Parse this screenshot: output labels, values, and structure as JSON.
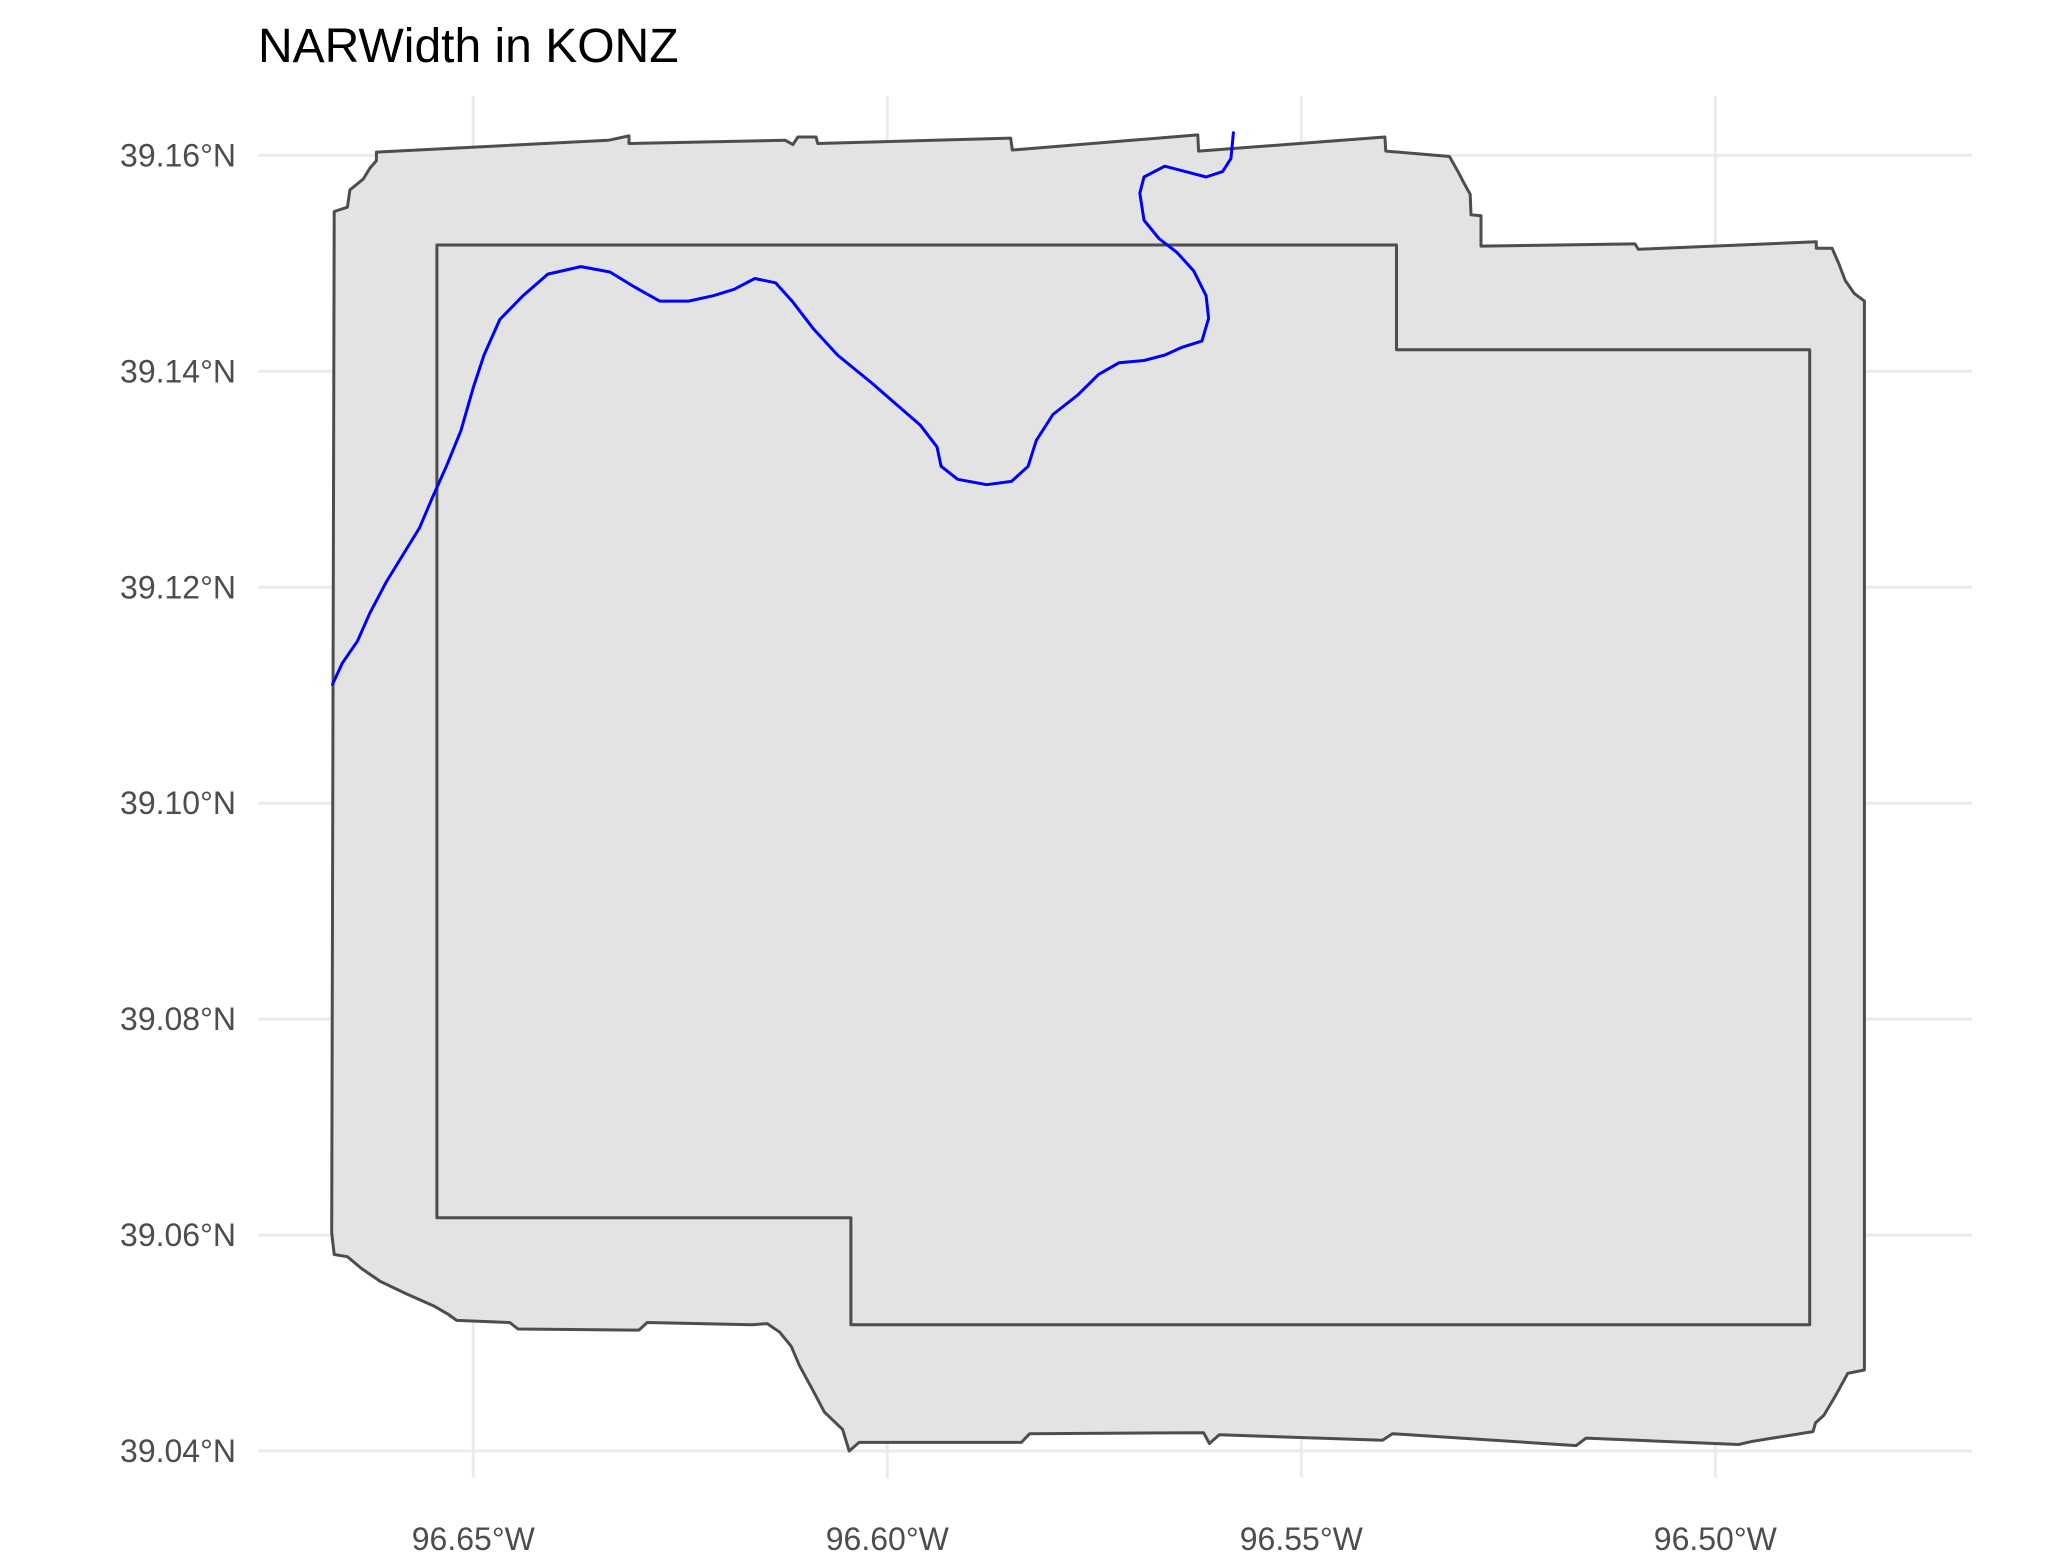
{
  "title": "NARWidth in KONZ",
  "colors": {
    "background": "#ffffff",
    "grid": "#ebebeb",
    "buffer_fill": "#e3e3e3",
    "outline": "#4d4d4d",
    "river": "#0000ff",
    "title": "#000000",
    "tick_label": "#4d4d4d"
  },
  "chart_data": {
    "type": "map",
    "xlim": [
      -96.676,
      -96.469
    ],
    "ylim": [
      39.0375,
      39.1655
    ],
    "x_ticks": [
      {
        "value": -96.65,
        "label": "96.65°W"
      },
      {
        "value": -96.6,
        "label": "96.60°W"
      },
      {
        "value": -96.55,
        "label": "96.55°W"
      },
      {
        "value": -96.5,
        "label": "96.50°W"
      }
    ],
    "y_ticks": [
      {
        "value": 39.16,
        "label": "39.16°N"
      },
      {
        "value": 39.14,
        "label": "39.14°N"
      },
      {
        "value": 39.12,
        "label": "39.12°N"
      },
      {
        "value": 39.1,
        "label": "39.10°N"
      },
      {
        "value": 39.08,
        "label": "39.08°N"
      },
      {
        "value": 39.06,
        "label": "39.06°N"
      },
      {
        "value": 39.04,
        "label": "39.04°N"
      }
    ],
    "grid": true,
    "layers": [
      {
        "name": "buffer",
        "kind": "polygon",
        "fill": "#e3e3e3",
        "stroke": "#4d4d4d",
        "coords": [
          [
            -96.6668,
            39.1548
          ],
          [
            -96.6652,
            39.1552
          ],
          [
            -96.6649,
            39.1568
          ],
          [
            -96.6633,
            39.1578
          ],
          [
            -96.6625,
            39.1588
          ],
          [
            -96.6617,
            39.1595
          ],
          [
            -96.6617,
            39.1603
          ],
          [
            -96.6337,
            39.1614
          ],
          [
            -96.6312,
            39.1618
          ],
          [
            -96.6312,
            39.1611
          ],
          [
            -96.6123,
            39.1614
          ],
          [
            -96.6114,
            39.161
          ],
          [
            -96.6108,
            39.1617
          ],
          [
            -96.6086,
            39.1617
          ],
          [
            -96.6084,
            39.1611
          ],
          [
            -96.5851,
            39.1616
          ],
          [
            -96.5849,
            39.1605
          ],
          [
            -96.5625,
            39.1619
          ],
          [
            -96.5624,
            39.1604
          ],
          [
            -96.5399,
            39.1617
          ],
          [
            -96.5398,
            39.1604
          ],
          [
            -96.5321,
            39.1599
          ],
          [
            -96.531,
            39.1584
          ],
          [
            -96.5304,
            39.1575
          ],
          [
            -96.5296,
            39.1564
          ],
          [
            -96.5295,
            39.1545
          ],
          [
            -96.5283,
            39.1544
          ],
          [
            -96.5283,
            39.1516
          ],
          [
            -96.5097,
            39.1518
          ],
          [
            -96.5093,
            39.1513
          ],
          [
            -96.4878,
            39.152
          ],
          [
            -96.4878,
            39.1514
          ],
          [
            -96.4859,
            39.1514
          ],
          [
            -96.4851,
            39.15
          ],
          [
            -96.4843,
            39.1484
          ],
          [
            -96.4832,
            39.1472
          ],
          [
            -96.482,
            39.1465
          ],
          [
            -96.482,
            39.0475
          ],
          [
            -96.484,
            39.0472
          ],
          [
            -96.4855,
            39.0451
          ],
          [
            -96.4869,
            39.0433
          ],
          [
            -96.4879,
            39.0426
          ],
          [
            -96.4882,
            39.0418
          ],
          [
            -96.4955,
            39.0409
          ],
          [
            -96.4972,
            39.0406
          ],
          [
            -96.5156,
            39.0412
          ],
          [
            -96.5168,
            39.0405
          ],
          [
            -96.539,
            39.0416
          ],
          [
            -96.5402,
            39.041
          ],
          [
            -96.5599,
            39.0415
          ],
          [
            -96.5611,
            39.0407
          ],
          [
            -96.5618,
            39.0417
          ],
          [
            -96.5828,
            39.0416
          ],
          [
            -96.5838,
            39.0408
          ],
          [
            -96.6034,
            39.0408
          ],
          [
            -96.6046,
            39.04
          ],
          [
            -96.6054,
            39.042
          ],
          [
            -96.6076,
            39.0436
          ],
          [
            -96.6091,
            39.0458
          ],
          [
            -96.6106,
            39.0479
          ],
          [
            -96.6116,
            39.0497
          ],
          [
            -96.613,
            39.051
          ],
          [
            -96.6145,
            39.0518
          ],
          [
            -96.6163,
            39.0517
          ],
          [
            -96.629,
            39.0519
          ],
          [
            -96.63,
            39.0512
          ],
          [
            -96.6446,
            39.0513
          ],
          [
            -96.6456,
            39.0519
          ],
          [
            -96.652,
            39.0521
          ],
          [
            -96.6531,
            39.0527
          ],
          [
            -96.6547,
            39.0534
          ],
          [
            -96.6582,
            39.0546
          ],
          [
            -96.6612,
            39.0557
          ],
          [
            -96.6635,
            39.0569
          ],
          [
            -96.6652,
            39.058
          ],
          [
            -96.6668,
            39.0582
          ],
          [
            -96.6671,
            39.0602
          ]
        ]
      },
      {
        "name": "site-boundary",
        "kind": "polygon",
        "fill": "none",
        "stroke": "#4d4d4d",
        "coords": [
          [
            -96.6544,
            39.1517
          ],
          [
            -96.5385,
            39.1517
          ],
          [
            -96.5385,
            39.142
          ],
          [
            -96.4886,
            39.142
          ],
          [
            -96.4886,
            39.0517
          ],
          [
            -96.6044,
            39.0517
          ],
          [
            -96.6044,
            39.0616
          ],
          [
            -96.6544,
            39.0616
          ]
        ]
      },
      {
        "name": "river",
        "kind": "line",
        "stroke": "#0000ff",
        "coords": [
          [
            -96.667,
            39.111
          ],
          [
            -96.6658,
            39.113
          ],
          [
            -96.664,
            39.115
          ],
          [
            -96.6625,
            39.1176
          ],
          [
            -96.6605,
            39.1205
          ],
          [
            -96.6585,
            39.123
          ],
          [
            -96.6565,
            39.1255
          ],
          [
            -96.655,
            39.1282
          ],
          [
            -96.6532,
            39.1313
          ],
          [
            -96.6515,
            39.1345
          ],
          [
            -96.65,
            39.1385
          ],
          [
            -96.6487,
            39.1415
          ],
          [
            -96.6468,
            39.1448
          ],
          [
            -96.644,
            39.147
          ],
          [
            -96.641,
            39.149
          ],
          [
            -96.637,
            39.1497
          ],
          [
            -96.6335,
            39.1492
          ],
          [
            -96.6305,
            39.1478
          ],
          [
            -96.6275,
            39.1465
          ],
          [
            -96.624,
            39.1465
          ],
          [
            -96.621,
            39.147
          ],
          [
            -96.6185,
            39.1476
          ],
          [
            -96.616,
            39.1486
          ],
          [
            -96.6135,
            39.1482
          ],
          [
            -96.6115,
            39.1465
          ],
          [
            -96.609,
            39.144
          ],
          [
            -96.606,
            39.1415
          ],
          [
            -96.602,
            39.139
          ],
          [
            -96.599,
            39.137
          ],
          [
            -96.596,
            39.135
          ],
          [
            -96.594,
            39.133
          ],
          [
            -96.5935,
            39.1312
          ],
          [
            -96.5915,
            39.13
          ],
          [
            -96.588,
            39.1295
          ],
          [
            -96.585,
            39.1298
          ],
          [
            -96.583,
            39.1312
          ],
          [
            -96.582,
            39.1336
          ],
          [
            -96.58,
            39.136
          ],
          [
            -96.577,
            39.1378
          ],
          [
            -96.5745,
            39.1397
          ],
          [
            -96.572,
            39.1408
          ],
          [
            -96.569,
            39.141
          ],
          [
            -96.5665,
            39.1415
          ],
          [
            -96.5645,
            39.1422
          ],
          [
            -96.562,
            39.1428
          ],
          [
            -96.5612,
            39.1449
          ],
          [
            -96.5615,
            39.147
          ],
          [
            -96.563,
            39.1493
          ],
          [
            -96.565,
            39.151
          ],
          [
            -96.5672,
            39.1523
          ],
          [
            -96.569,
            39.154
          ],
          [
            -96.5695,
            39.1565
          ],
          [
            -96.569,
            39.158
          ],
          [
            -96.5665,
            39.159
          ],
          [
            -96.564,
            39.1585
          ],
          [
            -96.5615,
            39.158
          ],
          [
            -96.5595,
            39.1585
          ],
          [
            -96.5585,
            39.1597
          ],
          [
            -96.5582,
            39.1621
          ]
        ]
      }
    ]
  }
}
